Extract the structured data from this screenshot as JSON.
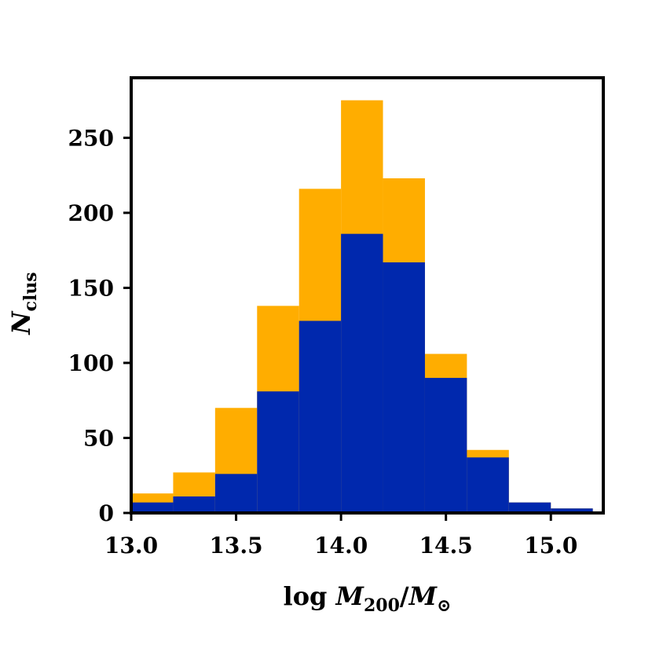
{
  "chart_data": {
    "type": "bar",
    "subtype": "stacked-histogram",
    "title": "",
    "xlabel": "log M200/M⊙",
    "xlabel_parts": {
      "prefix": "log ",
      "m": "M",
      "sub": "200",
      "slash": "/",
      "m2": "M",
      "sun": "⊙"
    },
    "ylabel": "Nclus",
    "ylabel_parts": {
      "main": "N",
      "sub": "clus"
    },
    "xlim": [
      13.0,
      15.25
    ],
    "ylim": [
      0,
      290
    ],
    "xticks": [
      13.0,
      13.5,
      14.0,
      14.5,
      15.0
    ],
    "xtick_labels": [
      "13.0",
      "13.5",
      "14.0",
      "14.5",
      "15.0"
    ],
    "yticks": [
      0,
      50,
      100,
      150,
      200,
      250
    ],
    "ytick_labels": [
      "0",
      "50",
      "100",
      "150",
      "200",
      "250"
    ],
    "bin_edges": [
      13.0,
      13.2,
      13.4,
      13.6,
      13.8,
      14.0,
      14.2,
      14.4,
      14.6,
      14.8,
      15.0,
      15.2
    ],
    "series": [
      {
        "color": "#ffad00",
        "values": [
          13,
          27,
          70,
          138,
          216,
          275,
          223,
          106,
          42,
          7,
          3
        ]
      },
      {
        "color": "#0028ad",
        "values": [
          7,
          11,
          26,
          81,
          128,
          186,
          167,
          90,
          37,
          7,
          3
        ]
      }
    ],
    "grid": false,
    "legend": "none"
  }
}
